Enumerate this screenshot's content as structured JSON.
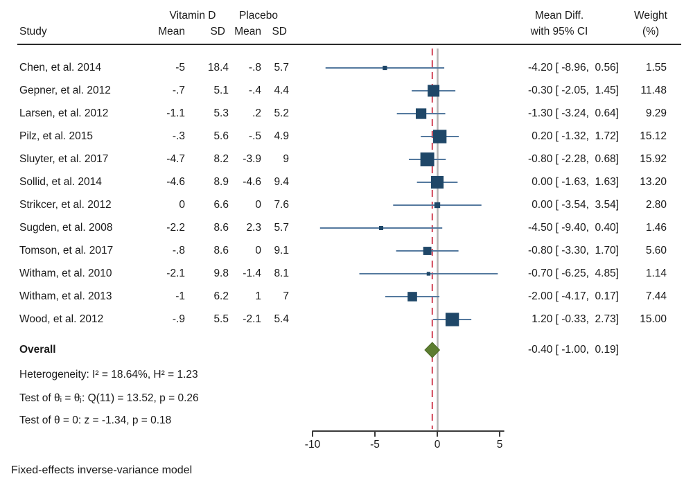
{
  "chart_data": {
    "type": "forest",
    "title": "",
    "effect_label": "Mean Diff.",
    "header": {
      "study": "Study",
      "group1": "Vitamin D",
      "group2": "Placebo",
      "mean": "Mean",
      "sd": "SD",
      "effect_line1": "Mean Diff.",
      "effect_line2": "with 95% CI",
      "weight_line1": "Weight",
      "weight_line2": "(%)"
    },
    "studies": [
      {
        "label": "Chen, et al. 2014",
        "vd_mean": "-5",
        "vd_sd": "18.4",
        "pl_mean": "-.8",
        "pl_sd": "5.7",
        "est": -4.2,
        "ci_low": -8.96,
        "ci_high": 0.56,
        "ci_text": "-4.20 [ -8.96,  0.56]",
        "weight": 1.55,
        "weight_text": "1.55"
      },
      {
        "label": "Gepner, et al. 2012",
        "vd_mean": "-.7",
        "vd_sd": "5.1",
        "pl_mean": "-.4",
        "pl_sd": "4.4",
        "est": -0.3,
        "ci_low": -2.05,
        "ci_high": 1.45,
        "ci_text": "-0.30 [ -2.05,  1.45]",
        "weight": 11.48,
        "weight_text": "11.48"
      },
      {
        "label": "Larsen, et al. 2012",
        "vd_mean": "-1.1",
        "vd_sd": "5.3",
        "pl_mean": ".2",
        "pl_sd": "5.2",
        "est": -1.3,
        "ci_low": -3.24,
        "ci_high": 0.64,
        "ci_text": "-1.30 [ -3.24,  0.64]",
        "weight": 9.29,
        "weight_text": "9.29"
      },
      {
        "label": "Pilz, et al. 2015",
        "vd_mean": "-.3",
        "vd_sd": "5.6",
        "pl_mean": "-.5",
        "pl_sd": "4.9",
        "est": 0.2,
        "ci_low": -1.32,
        "ci_high": 1.72,
        "ci_text": "0.20 [ -1.32,  1.72]",
        "weight": 15.12,
        "weight_text": "15.12"
      },
      {
        "label": "Sluyter, et al. 2017",
        "vd_mean": "-4.7",
        "vd_sd": "8.2",
        "pl_mean": "-3.9",
        "pl_sd": "9",
        "est": -0.8,
        "ci_low": -2.28,
        "ci_high": 0.68,
        "ci_text": "-0.80 [ -2.28,  0.68]",
        "weight": 15.92,
        "weight_text": "15.92"
      },
      {
        "label": "Sollid, et al. 2014",
        "vd_mean": "-4.6",
        "vd_sd": "8.9",
        "pl_mean": "-4.6",
        "pl_sd": "9.4",
        "est": 0.0,
        "ci_low": -1.63,
        "ci_high": 1.63,
        "ci_text": "0.00 [ -1.63,  1.63]",
        "weight": 13.2,
        "weight_text": "13.20"
      },
      {
        "label": "Strikcer, et al. 2012",
        "vd_mean": "0",
        "vd_sd": "6.6",
        "pl_mean": "0",
        "pl_sd": "7.6",
        "est": 0.0,
        "ci_low": -3.54,
        "ci_high": 3.54,
        "ci_text": "0.00 [ -3.54,  3.54]",
        "weight": 2.8,
        "weight_text": "2.80"
      },
      {
        "label": "Sugden, et al. 2008",
        "vd_mean": "-2.2",
        "vd_sd": "8.6",
        "pl_mean": "2.3",
        "pl_sd": "5.7",
        "est": -4.5,
        "ci_low": -9.4,
        "ci_high": 0.4,
        "ci_text": "-4.50 [ -9.40,  0.40]",
        "weight": 1.46,
        "weight_text": "1.46"
      },
      {
        "label": "Tomson, et al. 2017",
        "vd_mean": "-.8",
        "vd_sd": "8.6",
        "pl_mean": "0",
        "pl_sd": "9.1",
        "est": -0.8,
        "ci_low": -3.3,
        "ci_high": 1.7,
        "ci_text": "-0.80 [ -3.30,  1.70]",
        "weight": 5.6,
        "weight_text": "5.60"
      },
      {
        "label": "Witham, et al. 2010",
        "vd_mean": "-2.1",
        "vd_sd": "9.8",
        "pl_mean": "-1.4",
        "pl_sd": "8.1",
        "est": -0.7,
        "ci_low": -6.25,
        "ci_high": 4.85,
        "ci_text": "-0.70 [ -6.25,  4.85]",
        "weight": 1.14,
        "weight_text": "1.14"
      },
      {
        "label": "Witham, et al. 2013",
        "vd_mean": "-1",
        "vd_sd": "6.2",
        "pl_mean": "1",
        "pl_sd": "7",
        "est": -2.0,
        "ci_low": -4.17,
        "ci_high": 0.17,
        "ci_text": "-2.00 [ -4.17,  0.17]",
        "weight": 7.44,
        "weight_text": "7.44"
      },
      {
        "label": "Wood, et al. 2012",
        "vd_mean": "-.9",
        "vd_sd": "5.5",
        "pl_mean": "-2.1",
        "pl_sd": "5.4",
        "est": 1.2,
        "ci_low": -0.33,
        "ci_high": 2.73,
        "ci_text": "1.20 [ -0.33,  2.73]",
        "weight": 15.0,
        "weight_text": "15.00"
      }
    ],
    "overall": {
      "label": "Overall",
      "est": -0.4,
      "ci_low": -1.0,
      "ci_high": 0.19,
      "ci_text": "-0.40 [ -1.00,  0.19]"
    },
    "stats": [
      "Heterogeneity: I² = 18.64%, H² = 1.23",
      "Test of θᵢ = θⱼ: Q(11) = 13.52, p = 0.26",
      "Test of θ = 0: z = -1.34, p = 0.18"
    ],
    "footer": "Fixed-effects inverse-variance model",
    "axis": {
      "ticks": [
        {
          "label": "-10",
          "value": -10
        },
        {
          "label": "-5",
          "value": -5
        },
        {
          "label": "0",
          "value": 0
        },
        {
          "label": "5",
          "value": 5
        }
      ],
      "range": [
        -10.2,
        5.2
      ],
      "grid": false
    },
    "legend": null,
    "colors": {
      "square": "#1f4768",
      "ci_line": "#54799e",
      "overall_diamond": "#5c7d30",
      "diamond_edge": "#4c6a26",
      "null_line": "#b3b3b3",
      "effect_line": "#d24558",
      "axis": "#3a3a3a",
      "text": "#1a1a1a"
    }
  }
}
